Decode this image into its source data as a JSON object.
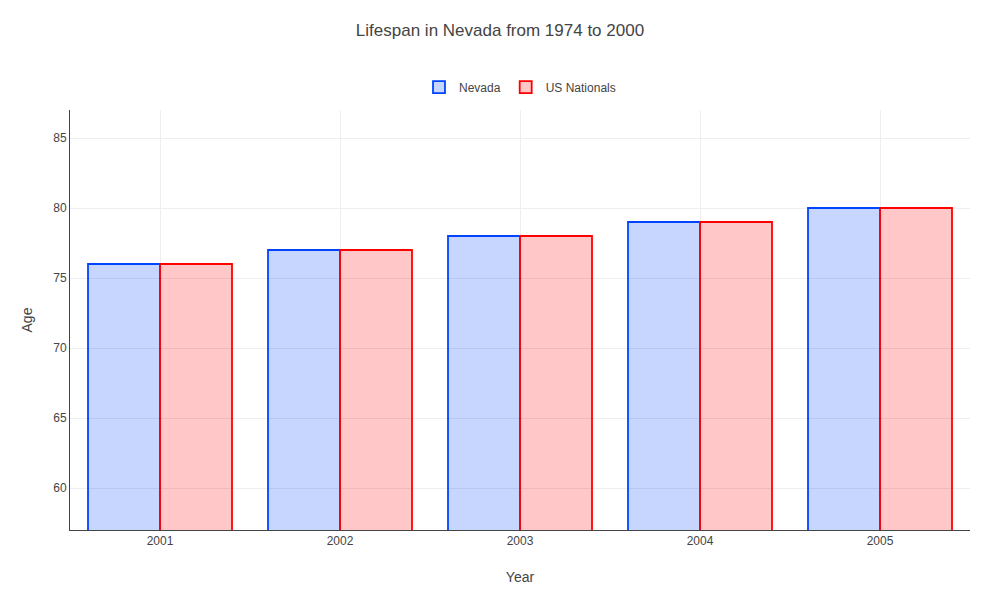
{
  "chart_data": {
    "type": "bar",
    "title": "Lifespan in Nevada from 1974 to 2000",
    "xlabel": "Year",
    "ylabel": "Age",
    "categories": [
      "2001",
      "2002",
      "2003",
      "2004",
      "2005"
    ],
    "series": [
      {
        "name": "Nevada",
        "color": "#0044ff",
        "values": [
          76,
          77,
          78,
          79,
          80
        ]
      },
      {
        "name": "US Nationals",
        "color": "#ff0000",
        "values": [
          76,
          77,
          78,
          79,
          80
        ]
      }
    ],
    "ylim": [
      57,
      87
    ],
    "yticks": [
      60,
      65,
      70,
      75,
      80,
      85
    ],
    "grid": true,
    "legend": "top"
  }
}
